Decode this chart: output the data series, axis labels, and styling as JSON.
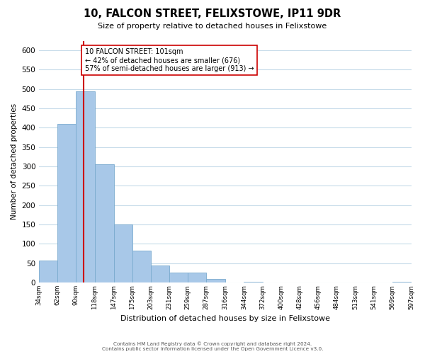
{
  "title": "10, FALCON STREET, FELIXSTOWE, IP11 9DR",
  "subtitle": "Size of property relative to detached houses in Felixstowe",
  "xlabel": "Distribution of detached houses by size in Felixstowe",
  "ylabel": "Number of detached properties",
  "bar_values": [
    57,
    410,
    495,
    305,
    150,
    82,
    44,
    26,
    26,
    10,
    0,
    2,
    0,
    0,
    0,
    0,
    0,
    0,
    0,
    2
  ],
  "bin_edges": [
    34,
    62,
    90,
    118,
    147,
    175,
    203,
    231,
    259,
    287,
    316,
    344,
    372,
    400,
    428,
    456,
    484,
    513,
    541,
    569,
    597
  ],
  "tick_labels": [
    "34sqm",
    "62sqm",
    "90sqm",
    "118sqm",
    "147sqm",
    "175sqm",
    "203sqm",
    "231sqm",
    "259sqm",
    "287sqm",
    "316sqm",
    "344sqm",
    "372sqm",
    "400sqm",
    "428sqm",
    "456sqm",
    "484sqm",
    "513sqm",
    "541sqm",
    "569sqm",
    "597sqm"
  ],
  "bar_color": "#a8c8e8",
  "bar_edge_color": "#7aaace",
  "property_line_x": 101,
  "property_line_color": "#cc0000",
  "annotation_text": "10 FALCON STREET: 101sqm\n← 42% of detached houses are smaller (676)\n57% of semi-detached houses are larger (913) →",
  "annotation_box_color": "white",
  "annotation_box_edge": "#cc0000",
  "ylim": [
    0,
    625
  ],
  "yticks": [
    0,
    50,
    100,
    150,
    200,
    250,
    300,
    350,
    400,
    450,
    500,
    550,
    600
  ],
  "background_color": "#ffffff",
  "grid_color": "#c8dcea",
  "footer_line1": "Contains HM Land Registry data © Crown copyright and database right 2024.",
  "footer_line2": "Contains public sector information licensed under the Open Government Licence v3.0."
}
